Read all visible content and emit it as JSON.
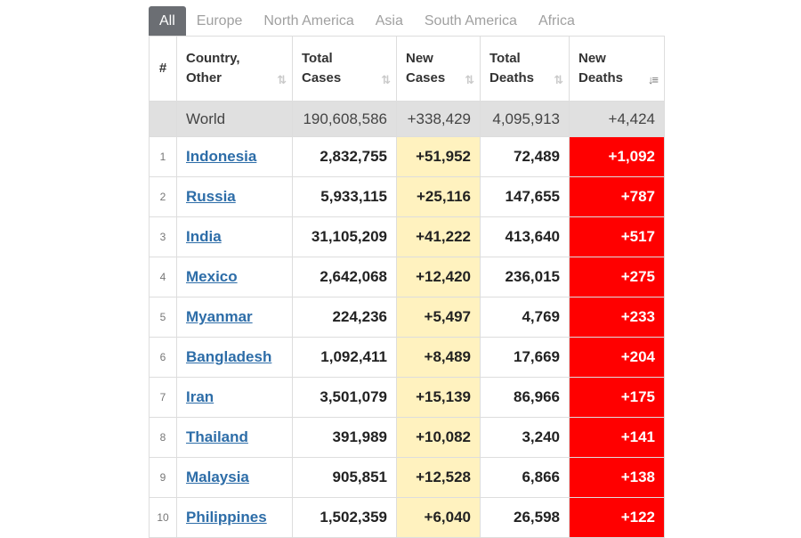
{
  "tabs": [
    {
      "label": "All",
      "active": true
    },
    {
      "label": "Europe"
    },
    {
      "label": "North America"
    },
    {
      "label": "Asia"
    },
    {
      "label": "South America"
    },
    {
      "label": "Africa"
    }
  ],
  "header": {
    "idx": "#",
    "country": [
      "Country,",
      "Other"
    ],
    "total_cases": [
      "Total",
      "Cases"
    ],
    "new_cases": [
      "New",
      "Cases"
    ],
    "total_deaths": [
      "Total",
      "Deaths"
    ],
    "new_deaths": [
      "New",
      "Deaths"
    ],
    "sort_icon": "⇅",
    "sort_active_icon": "↓≡"
  },
  "world": {
    "country": "World",
    "total_cases": "190,608,586",
    "new_cases": "+338,429",
    "total_deaths": "4,095,913",
    "new_deaths": "+4,424"
  },
  "rows": [
    {
      "idx": "1",
      "country": "Indonesia",
      "total_cases": "2,832,755",
      "new_cases": "+51,952",
      "total_deaths": "72,489",
      "new_deaths": "+1,092"
    },
    {
      "idx": "2",
      "country": "Russia",
      "total_cases": "5,933,115",
      "new_cases": "+25,116",
      "total_deaths": "147,655",
      "new_deaths": "+787"
    },
    {
      "idx": "3",
      "country": "India",
      "total_cases": "31,105,209",
      "new_cases": "+41,222",
      "total_deaths": "413,640",
      "new_deaths": "+517"
    },
    {
      "idx": "4",
      "country": "Mexico",
      "total_cases": "2,642,068",
      "new_cases": "+12,420",
      "total_deaths": "236,015",
      "new_deaths": "+275"
    },
    {
      "idx": "5",
      "country": "Myanmar",
      "total_cases": "224,236",
      "new_cases": "+5,497",
      "total_deaths": "4,769",
      "new_deaths": "+233"
    },
    {
      "idx": "6",
      "country": "Bangladesh",
      "total_cases": "1,092,411",
      "new_cases": "+8,489",
      "total_deaths": "17,669",
      "new_deaths": "+204"
    },
    {
      "idx": "7",
      "country": "Iran",
      "total_cases": "3,501,079",
      "new_cases": "+15,139",
      "total_deaths": "86,966",
      "new_deaths": "+175"
    },
    {
      "idx": "8",
      "country": "Thailand",
      "total_cases": "391,989",
      "new_cases": "+10,082",
      "total_deaths": "3,240",
      "new_deaths": "+141"
    },
    {
      "idx": "9",
      "country": "Malaysia",
      "total_cases": "905,851",
      "new_cases": "+12,528",
      "total_deaths": "6,866",
      "new_deaths": "+138"
    },
    {
      "idx": "10",
      "country": "Philippines",
      "total_cases": "1,502,359",
      "new_cases": "+6,040",
      "total_deaths": "26,598",
      "new_deaths": "+122"
    }
  ],
  "colors": {
    "new_cases_bg": "#fff2bf",
    "new_deaths_bg": "#ff0000",
    "world_bg": "#e0e0e0",
    "active_tab_bg": "#6b6e73",
    "link": "#2d6da8"
  }
}
